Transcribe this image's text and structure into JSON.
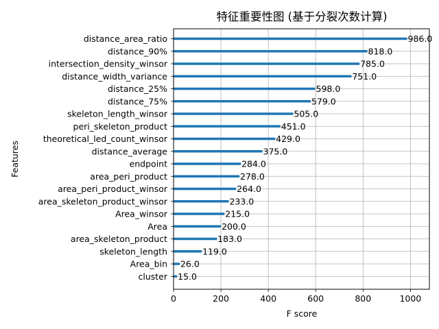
{
  "chart_data": {
    "type": "bar",
    "orientation": "horizontal",
    "title": "特征重要性图 (基于分裂次数计算)",
    "xlabel": "F score",
    "ylabel": "Features",
    "xlim": [
      0,
      1080
    ],
    "xticks": [
      0,
      200,
      400,
      600,
      800,
      1000
    ],
    "grid": true,
    "categories": [
      "distance_area_ratio",
      "distance_90%",
      "intersection_density_winsor",
      "distance_width_variance",
      "distance_25%",
      "distance_75%",
      "skeleton_length_winsor",
      "peri_skeleton_product",
      "theoretical_led_count_winsor",
      "distance_average",
      "endpoint",
      "area_peri_product",
      "area_peri_product_winsor",
      "area_skeleton_product_winsor",
      "Area_winsor",
      "Area",
      "area_skeleton_product",
      "skeleton_length",
      "Area_bin",
      "cluster"
    ],
    "values": [
      986,
      818,
      785,
      751,
      598,
      579,
      505,
      451,
      429,
      375,
      284,
      278,
      264,
      233,
      215,
      200,
      183,
      119,
      26,
      15
    ],
    "value_labels": [
      "986.0",
      "818.0",
      "785.0",
      "751.0",
      "598.0",
      "579.0",
      "505.0",
      "451.0",
      "429.0",
      "375.0",
      "284.0",
      "278.0",
      "264.0",
      "233.0",
      "215.0",
      "200.0",
      "183.0",
      "119.0",
      "26.0",
      "15.0"
    ],
    "bar_color": "#1f77b4",
    "grid_color": "#b0b0b0"
  }
}
